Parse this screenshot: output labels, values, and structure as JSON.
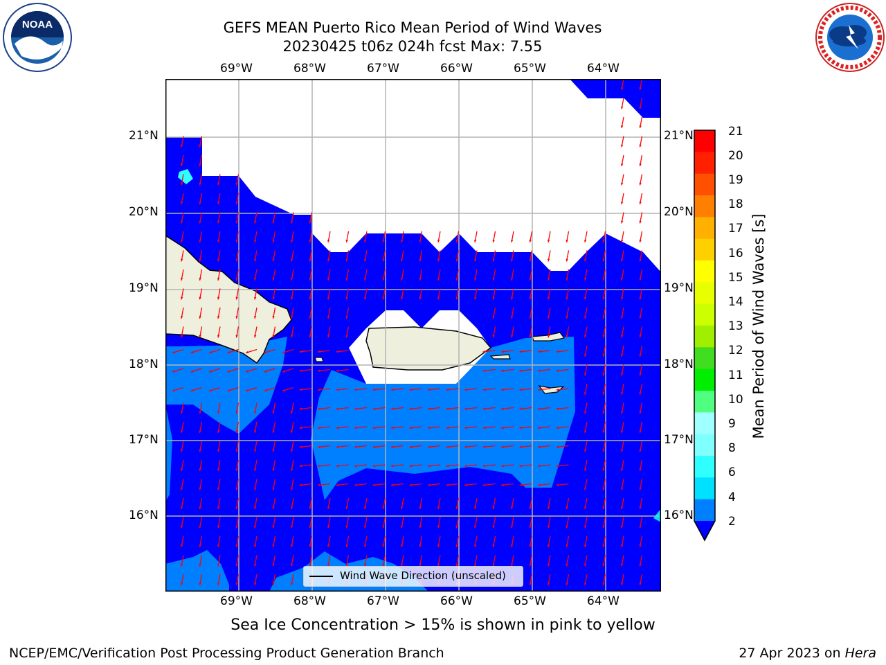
{
  "header": {
    "title_line1": "GEFS MEAN Puerto Rico Mean Period of Wind Waves",
    "title_line2": "20230425 t06z 024h fcst   Max: 7.55"
  },
  "logos": {
    "noaa": {
      "text": "NOAA",
      "ring_text": "NATIONAL OCEANIC AND ATMOSPHERIC ADMINISTRATION · U.S. DEPARTMENT OF COMMERCE"
    },
    "nws": {
      "ring_text": "NATIONAL WEATHER SERVICE"
    }
  },
  "map": {
    "lon_labels": [
      "69°W",
      "68°W",
      "67°W",
      "66°W",
      "65°W",
      "64°W"
    ],
    "lat_labels": [
      "21°N",
      "20°N",
      "19°N",
      "18°N",
      "17°N",
      "16°N"
    ],
    "legend_label": "Wind Wave Direction (unscaled)",
    "colors": {
      "ocean_low": "#0000ff",
      "ocean_mid": "#0080ff",
      "land": "#efefde",
      "arrows": "#ff0000",
      "grid": "#b4b4b4"
    }
  },
  "colorbar": {
    "label": "Mean Period of Wind Waves [s]",
    "ticks": [
      "2",
      "4",
      "6",
      "8",
      "9",
      "10",
      "11",
      "12",
      "13",
      "14",
      "15",
      "16",
      "17",
      "18",
      "19",
      "20",
      "21"
    ],
    "colors": [
      "#0080ff",
      "#00e0ff",
      "#30ffff",
      "#80ffff",
      "#a0ffff",
      "#50ff80",
      "#00ee00",
      "#40dd20",
      "#a0ee00",
      "#ccff00",
      "#e8ff00",
      "#ffff00",
      "#ffd000",
      "#ffb000",
      "#ff8000",
      "#ff5000",
      "#ff2000",
      "#ff0000"
    ]
  },
  "note": "Sea Ice Concentration > 15% is shown in pink to yellow",
  "footer": {
    "left": "NCEP/EMC/Verification Post Processing Product Generation Branch",
    "right_prefix": "27 Apr 2023 on ",
    "right_host": "Hera"
  }
}
